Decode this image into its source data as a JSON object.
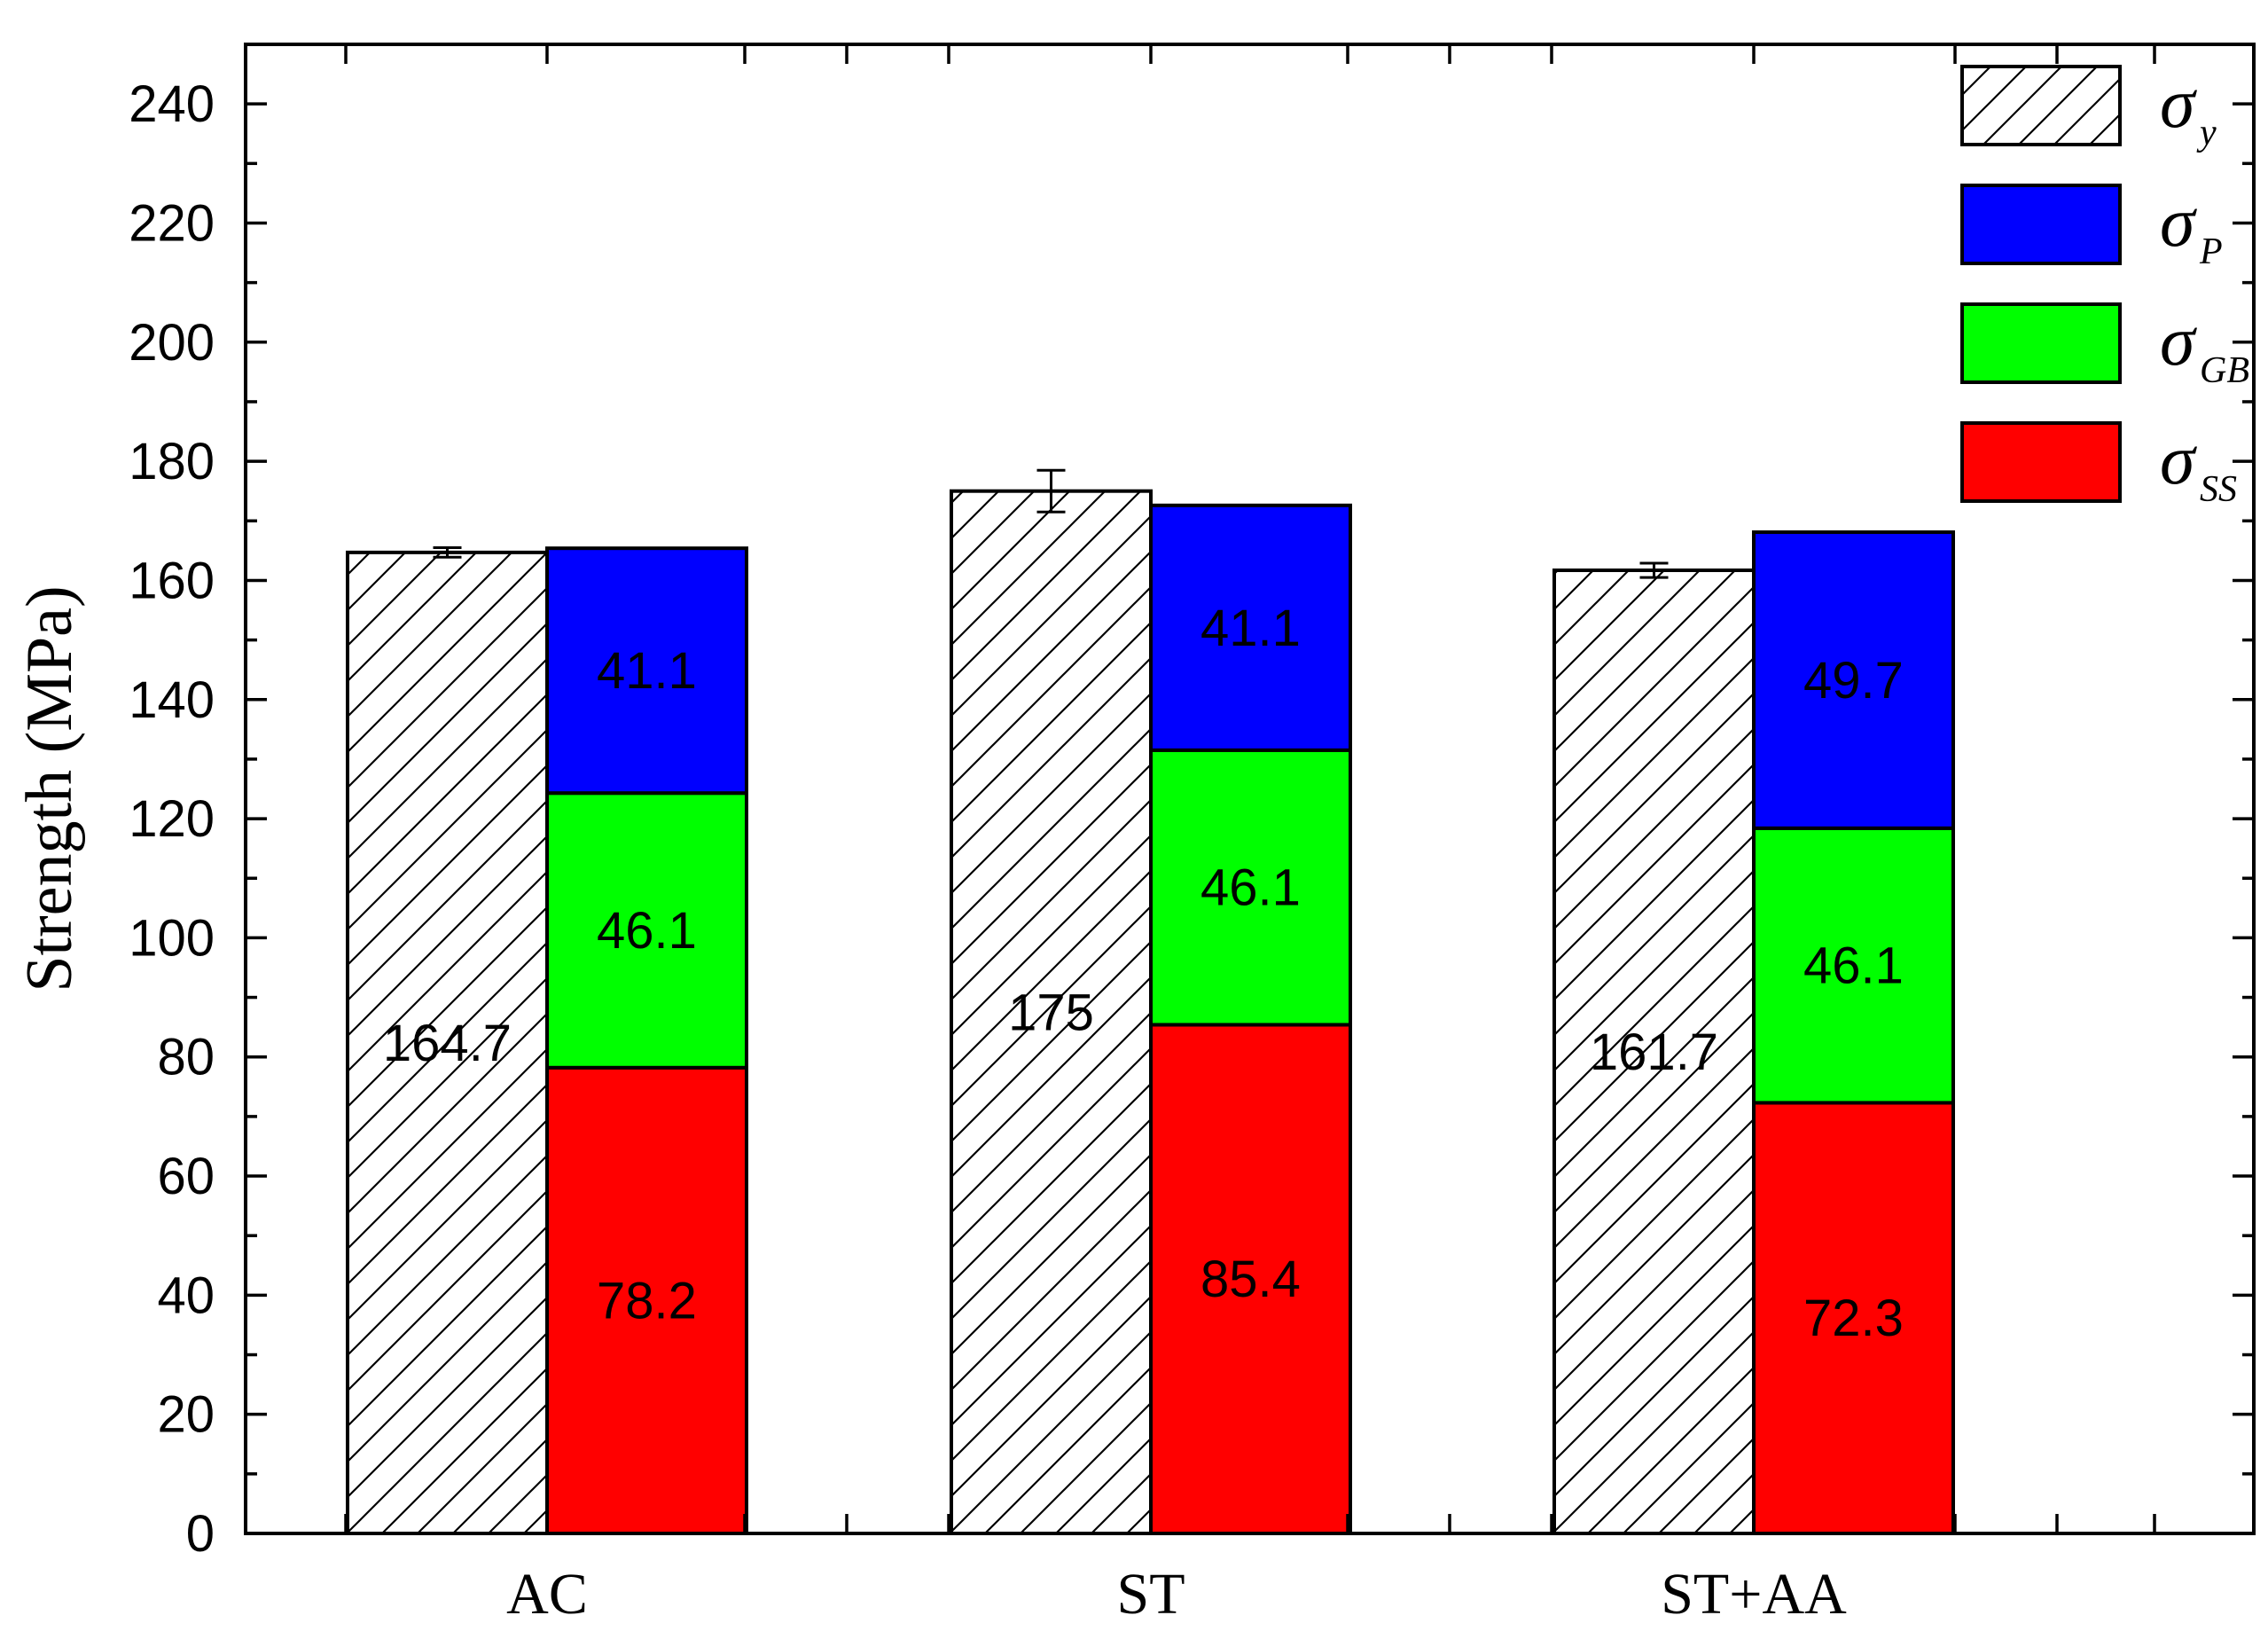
{
  "chart_data": {
    "type": "bar",
    "stacked_with_reference": true,
    "categories": [
      "AC",
      "ST",
      "ST+AA"
    ],
    "ylabel": "Strength (MPa)",
    "xlabel": "",
    "ylim": [
      0,
      250
    ],
    "yticks": [
      0,
      20,
      40,
      60,
      80,
      100,
      120,
      140,
      160,
      180,
      200,
      220,
      240
    ],
    "reference_series": {
      "name": "σy",
      "symbol": "σ",
      "subscript": "y",
      "pattern": "hatched",
      "values": [
        164.7,
        175,
        161.7
      ],
      "labels": [
        "164.7",
        "175",
        "161.7"
      ],
      "errors": [
        0.8,
        3.5,
        1.2
      ]
    },
    "stacked_series": [
      {
        "name": "σSS",
        "symbol": "σ",
        "subscript": "SS",
        "color": "#ff0000",
        "values": [
          78.2,
          85.4,
          72.3
        ],
        "labels": [
          "78.2",
          "85.4",
          "72.3"
        ]
      },
      {
        "name": "σGB",
        "symbol": "σ",
        "subscript": "GB",
        "color": "#00ff00",
        "values": [
          46.1,
          46.1,
          46.1
        ],
        "labels": [
          "46.1",
          "46.1",
          "46.1"
        ]
      },
      {
        "name": "σP",
        "symbol": "σ",
        "subscript": "P",
        "color": "#0000ff",
        "values": [
          41.1,
          41.1,
          49.7
        ],
        "labels": [
          "41.1",
          "41.1",
          "49.7"
        ]
      }
    ],
    "legend": {
      "position": "top-right",
      "order": [
        "σy",
        "σP",
        "σGB",
        "σSS"
      ]
    },
    "grid": false
  }
}
